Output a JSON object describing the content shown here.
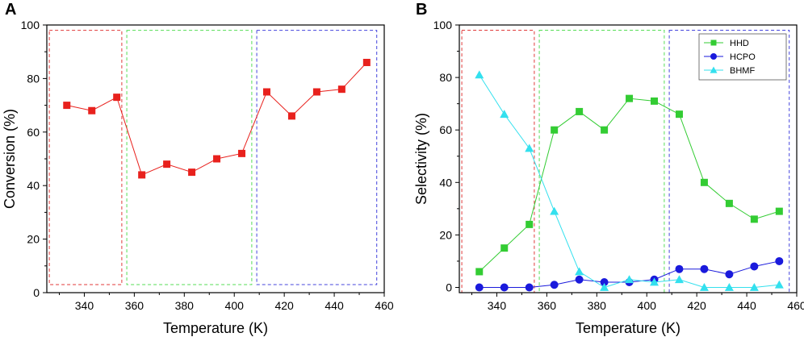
{
  "chart_data": [
    {
      "panel": "A",
      "type": "line",
      "title": "",
      "xlabel": "Temperature (K)",
      "ylabel": "Conversion (%)",
      "xlim": [
        325,
        460
      ],
      "ylim": [
        0,
        100
      ],
      "xticks": [
        340,
        360,
        380,
        400,
        420,
        440,
        460
      ],
      "yticks": [
        0,
        20,
        40,
        60,
        80,
        100
      ],
      "regions": [
        {
          "color": "#e03a3a",
          "x": [
            326,
            355
          ],
          "y": [
            3,
            98
          ]
        },
        {
          "color": "#55dd55",
          "x": [
            357,
            407
          ],
          "y": [
            3,
            98
          ]
        },
        {
          "color": "#4444dd",
          "x": [
            409,
            457
          ],
          "y": [
            3,
            98
          ]
        }
      ],
      "series": [
        {
          "name": "Conversion",
          "color": "#e8211d",
          "marker": "square",
          "x": [
            333,
            343,
            353,
            363,
            373,
            383,
            393,
            403,
            413,
            423,
            433,
            443,
            453
          ],
          "values": [
            70,
            68,
            73,
            44,
            48,
            45,
            50,
            52,
            75,
            66,
            75,
            76,
            86
          ]
        }
      ]
    },
    {
      "panel": "B",
      "type": "line",
      "title": "",
      "xlabel": "Temperature (K)",
      "ylabel": "Selectivity (%)",
      "xlim": [
        325,
        460
      ],
      "ylim": [
        -2,
        100
      ],
      "xticks": [
        340,
        360,
        380,
        400,
        420,
        440,
        460
      ],
      "yticks": [
        0,
        20,
        40,
        60,
        80,
        100
      ],
      "legend_position": "top-right",
      "regions": [
        {
          "color": "#e03a3a",
          "x": [
            326,
            355
          ],
          "y": [
            -2,
            98
          ]
        },
        {
          "color": "#55dd55",
          "x": [
            357,
            407
          ],
          "y": [
            -2,
            98
          ]
        },
        {
          "color": "#4444dd",
          "x": [
            409,
            457
          ],
          "y": [
            -2,
            98
          ]
        }
      ],
      "series": [
        {
          "name": "HHD",
          "color": "#33cc33",
          "marker": "square",
          "x": [
            333,
            343,
            353,
            363,
            373,
            383,
            393,
            403,
            413,
            423,
            433,
            443,
            453
          ],
          "values": [
            6,
            15,
            24,
            60,
            67,
            60,
            72,
            71,
            66,
            40,
            32,
            26,
            29
          ]
        },
        {
          "name": "HCPO",
          "color": "#1a1adc",
          "marker": "circle",
          "x": [
            333,
            343,
            353,
            363,
            373,
            383,
            393,
            403,
            413,
            423,
            433,
            443,
            453
          ],
          "values": [
            0,
            0,
            0,
            1,
            3,
            2,
            2,
            3,
            7,
            7,
            5,
            8,
            10
          ]
        },
        {
          "name": "BHMF",
          "color": "#33e0ee",
          "marker": "triangle",
          "x": [
            333,
            343,
            353,
            363,
            373,
            383,
            393,
            403,
            413,
            423,
            433,
            443,
            453
          ],
          "values": [
            81,
            66,
            53,
            29,
            6,
            0,
            3,
            2,
            3,
            0,
            0,
            0,
            1
          ]
        }
      ]
    }
  ]
}
